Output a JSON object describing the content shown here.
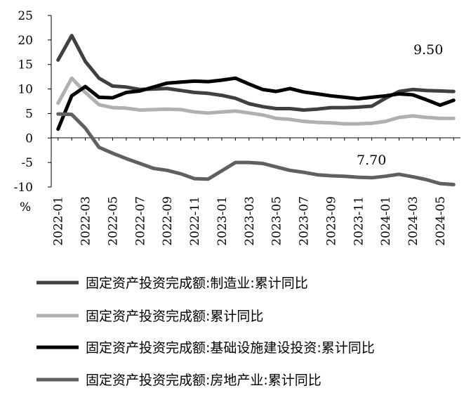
{
  "chart_data": {
    "type": "line",
    "title": "",
    "xlabel": "",
    "ylabel": "%",
    "ylim": [
      -10,
      25
    ],
    "yticks": [
      -10,
      -5,
      0,
      5,
      10,
      15,
      20,
      25
    ],
    "grid": false,
    "legend_position": "bottom",
    "x": [
      "2022-01",
      "2022-02",
      "2022-03",
      "2022-04",
      "2022-05",
      "2022-06",
      "2022-07",
      "2022-08",
      "2022-09",
      "2022-10",
      "2022-11",
      "2022-12",
      "2023-01",
      "2023-02",
      "2023-03",
      "2023-04",
      "2023-05",
      "2023-06",
      "2023-07",
      "2023-08",
      "2023-09",
      "2023-10",
      "2023-11",
      "2023-12",
      "2024-01",
      "2024-02",
      "2024-03",
      "2024-04",
      "2024-05",
      "2024-06"
    ],
    "x_tick_labels": [
      "2022-01",
      "2022-03",
      "2022-05",
      "2022-07",
      "2022-09",
      "2022-11",
      "2023-01",
      "2023-03",
      "2023-05",
      "2023-07",
      "2023-09",
      "2023-11",
      "2024-01",
      "2024-03",
      "2024-05"
    ],
    "series": [
      {
        "name": "固定资产投资完成额:制造业:累计同比",
        "color": "#404040",
        "values": [
          15.9,
          20.9,
          15.6,
          12.2,
          10.6,
          10.4,
          9.9,
          10.0,
          10.1,
          9.7,
          9.3,
          9.1,
          8.7,
          8.1,
          7.0,
          6.4,
          6.0,
          6.0,
          5.7,
          5.9,
          6.2,
          6.2,
          6.3,
          6.5,
          8.1,
          9.5,
          9.9,
          9.7,
          9.6,
          9.5
        ]
      },
      {
        "name": "固定资产投资完成额:累计同比",
        "color": "#b0b0b0",
        "values": [
          7.1,
          12.2,
          9.3,
          6.8,
          6.2,
          6.1,
          5.7,
          5.8,
          5.9,
          5.8,
          5.3,
          5.1,
          5.3,
          5.5,
          5.1,
          4.7,
          4.0,
          3.8,
          3.4,
          3.2,
          3.1,
          2.9,
          2.9,
          3.0,
          3.4,
          4.2,
          4.5,
          4.2,
          4.0,
          4.0
        ]
      },
      {
        "name": "固定资产投资完成额:基础设施建设投资:累计同比",
        "color": "#000000",
        "values": [
          1.8,
          8.6,
          10.5,
          8.3,
          8.2,
          9.3,
          9.6,
          10.4,
          11.2,
          11.4,
          11.6,
          11.5,
          11.8,
          12.2,
          11.0,
          9.9,
          9.5,
          10.1,
          9.4,
          9.0,
          8.6,
          8.3,
          8.0,
          8.3,
          8.6,
          9.0,
          8.8,
          7.8,
          6.7,
          7.7
        ]
      },
      {
        "name": "固定资产投资完成额:房地产业:累计同比",
        "color": "#606060",
        "values": [
          4.9,
          4.8,
          2.0,
          -1.9,
          -3.1,
          -4.2,
          -5.2,
          -6.2,
          -6.6,
          -7.3,
          -8.3,
          -8.4,
          -6.7,
          -5.0,
          -5.0,
          -5.2,
          -5.9,
          -6.6,
          -7.0,
          -7.5,
          -7.7,
          -7.8,
          -8.0,
          -8.1,
          -7.8,
          -7.4,
          -7.9,
          -8.5,
          -9.3,
          -9.5
        ]
      }
    ],
    "annotations": [
      {
        "text": "9.50"
      },
      {
        "text": "7.70"
      }
    ]
  }
}
